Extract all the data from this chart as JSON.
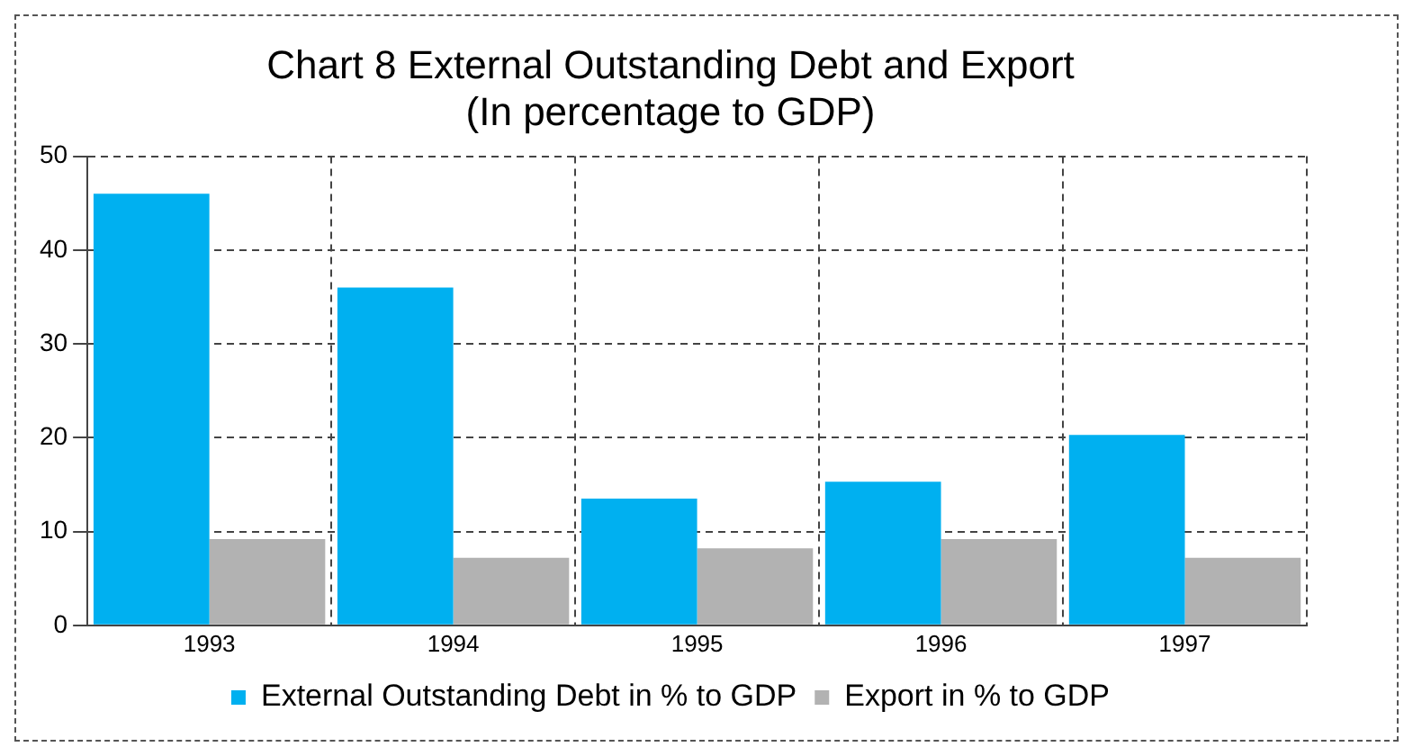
{
  "chart_data": {
    "type": "bar",
    "title": "Chart 8 External Outstanding Debt and Export",
    "subtitle": "(In percentage to GDP)",
    "categories": [
      "1993",
      "1994",
      "1995",
      "1996",
      "1997"
    ],
    "series": [
      {
        "name": "External Outstanding Debt in % to GDP",
        "color": "#00b0f0",
        "values": [
          46,
          36,
          13.5,
          15.3,
          20.3
        ]
      },
      {
        "name": "Export in % to GDP",
        "color": "#b2b2b2",
        "values": [
          9.2,
          7.2,
          8.2,
          9.2,
          7.2
        ]
      }
    ],
    "ylim": [
      0,
      50
    ],
    "yticks": [
      0,
      10,
      20,
      30,
      40,
      50
    ],
    "grid": true,
    "legend": "bottom"
  }
}
